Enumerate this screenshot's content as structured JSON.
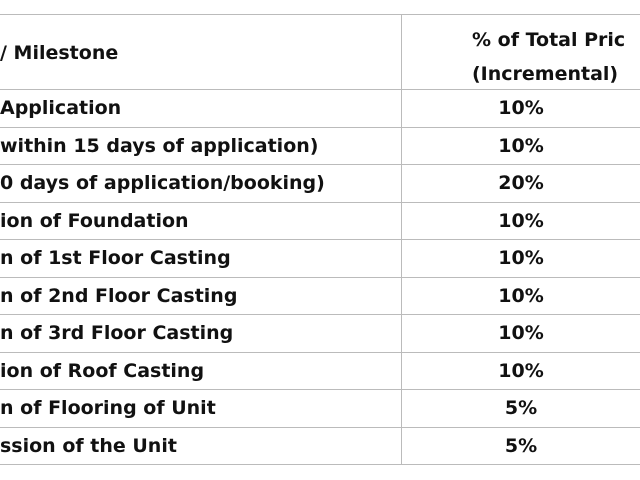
{
  "table": {
    "header": [
      "/ Milestone",
      [
        "% of Total Pric",
        "(Incremental)"
      ]
    ],
    "rows": [
      [
        "Application",
        "10%"
      ],
      [
        "within 15 days of application)",
        "10%"
      ],
      [
        "0 days of application/booking)",
        "20%"
      ],
      [
        "ion of Foundation",
        "10%"
      ],
      [
        "n of 1st Floor Casting",
        "10%"
      ],
      [
        "n of 2nd Floor Casting",
        "10%"
      ],
      [
        "n of 3rd Floor Casting",
        "10%"
      ],
      [
        "ion of Roof Casting",
        "10%"
      ],
      [
        "n of Flooring of Unit",
        "5%"
      ],
      [
        "ssion of the Unit",
        "5%"
      ]
    ]
  }
}
